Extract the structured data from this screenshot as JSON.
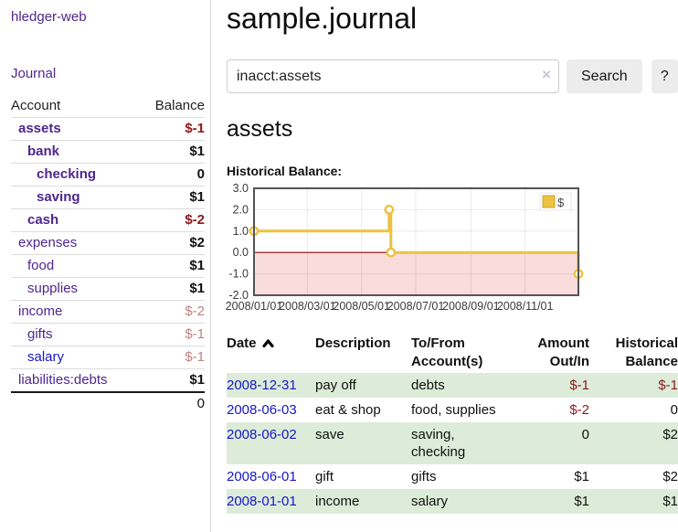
{
  "colors": {
    "link_purple": "#4f268f",
    "link_blue": "#1717c9",
    "negative_strong": "#8b1a1a",
    "negative_soft": "#c08383",
    "accent_gold": "#EDC240",
    "row_stripe_green": "#dcecd8"
  },
  "sidebar": {
    "brand": "hledger-web",
    "journal_label": "Journal",
    "table_header": {
      "account": "Account",
      "balance": "Balance"
    },
    "accounts": [
      {
        "name": "assets",
        "balance": "$-1",
        "level": 1,
        "bold": true,
        "neg": "strong"
      },
      {
        "name": "bank",
        "balance": "$1",
        "level": 2,
        "bold": true
      },
      {
        "name": "checking",
        "balance": "0",
        "level": 3,
        "bold": true
      },
      {
        "name": "saving",
        "balance": "$1",
        "level": 3,
        "bold": true
      },
      {
        "name": "cash",
        "balance": "$-2",
        "level": 2,
        "bold": true,
        "neg": "strong"
      },
      {
        "name": "expenses",
        "balance": "$2",
        "level": 1
      },
      {
        "name": "food",
        "balance": "$1",
        "level": 2
      },
      {
        "name": "supplies",
        "balance": "$1",
        "level": 2
      },
      {
        "name": "income",
        "balance": "$-2",
        "level": 1,
        "neg": "soft"
      },
      {
        "name": "gifts",
        "balance": "$-1",
        "level": 2,
        "neg": "soft"
      },
      {
        "name": "salary",
        "balance": "$-1",
        "level": 2,
        "neg": "soft",
        "link": "blue"
      },
      {
        "name": "liabilities:debts",
        "balance": "$1",
        "level": 1
      }
    ],
    "total": "0"
  },
  "main": {
    "title": "sample.journal",
    "search": {
      "value": "inacct:assets",
      "clear_icon": "×",
      "button_label": "Search",
      "help_label": "?"
    },
    "account_heading": "assets",
    "section_label": "Historical Balance:"
  },
  "chart_data": {
    "type": "line",
    "mode": "step-after",
    "title": "Historical Balance",
    "series": [
      {
        "name": "$",
        "color": "#EDC240",
        "points": [
          [
            "2008-01-01",
            1.0
          ],
          [
            "2008-06-01",
            2.0
          ],
          [
            "2008-06-03",
            0.0
          ],
          [
            "2008-12-31",
            -1.0
          ]
        ]
      }
    ],
    "x_range": [
      "2008-01-01",
      "2008-12-31"
    ],
    "x_ticks": [
      "2008/01/01",
      "2008/03/01",
      "2008/05/01",
      "2008/07/01",
      "2008/09/01",
      "2008/11/01"
    ],
    "y_ticks": [
      "3.0",
      "2.0",
      "1.0",
      "0.0",
      "-1.0",
      "-2.0"
    ],
    "ylim": [
      -2,
      3
    ],
    "grid": true,
    "legend_position": "top-right",
    "zero_line_color": "#8b0000",
    "negative_region_fill": "#f9dcdc"
  },
  "register": {
    "columns": [
      {
        "line1": "Date",
        "line2": "",
        "sorted": "asc"
      },
      {
        "line1": "Description",
        "line2": ""
      },
      {
        "line1": "To/From",
        "line2": "Account(s)"
      },
      {
        "line1": "Amount",
        "line2": "Out/In",
        "align": "right"
      },
      {
        "line1": "Historical",
        "line2": "Balance",
        "align": "right"
      }
    ],
    "rows": [
      {
        "date": "2008-12-31",
        "description": "pay off",
        "accounts": "debts",
        "amount": "$-1",
        "amount_negative": true,
        "balance": "$-1",
        "balance_negative": true
      },
      {
        "date": "2008-06-03",
        "description": "eat & shop",
        "accounts": "food, supplies",
        "amount": "$-2",
        "amount_negative": true,
        "balance": "0",
        "balance_negative": false
      },
      {
        "date": "2008-06-02",
        "description": "save",
        "accounts": "saving, checking",
        "amount": "0",
        "amount_negative": false,
        "balance": "$2",
        "balance_negative": false
      },
      {
        "date": "2008-06-01",
        "description": "gift",
        "accounts": "gifts",
        "amount": "$1",
        "amount_negative": false,
        "balance": "$2",
        "balance_negative": false
      },
      {
        "date": "2008-01-01",
        "description": "income",
        "accounts": "salary",
        "amount": "$1",
        "amount_negative": false,
        "balance": "$1",
        "balance_negative": false
      }
    ]
  }
}
